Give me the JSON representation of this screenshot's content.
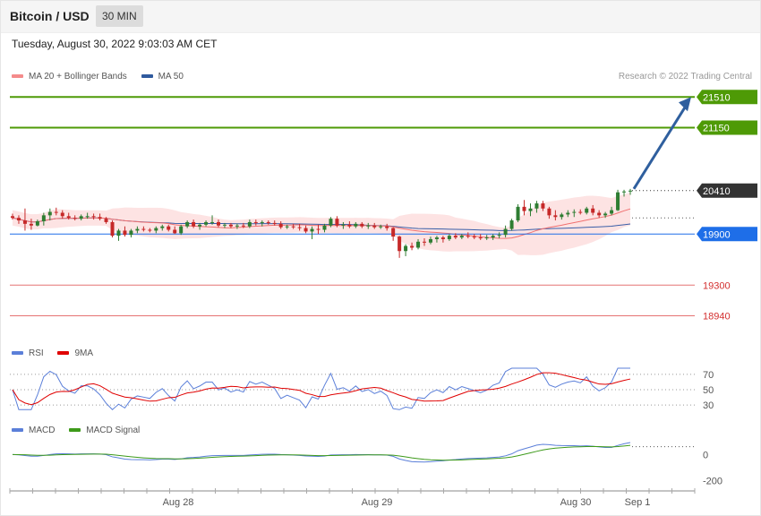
{
  "header": {
    "title": "Bitcoin / USD",
    "timeframe": "30 MIN"
  },
  "date_line": "Tuesday, August 30, 2022 9:03:03 AM CET",
  "legend_main": [
    {
      "label": "MA 20 + Bollinger Bands",
      "color": "#f48b8b"
    },
    {
      "label": "MA 50",
      "color": "#2f5a9e"
    }
  ],
  "credit": "Research © 2022 Trading Central",
  "legend_rsi": [
    {
      "label": "RSI",
      "color": "#5b7fd9"
    },
    {
      "label": "9MA",
      "color": "#e00000"
    }
  ],
  "legend_macd": [
    {
      "label": "MACD",
      "color": "#5b7fd9"
    },
    {
      "label": "MACD Signal",
      "color": "#3d9a1a"
    }
  ],
  "colors": {
    "up": "#2e7d32",
    "down": "#c62828",
    "target": "#4e9a06",
    "current": "#333333",
    "support": "#1e6ee8",
    "resistance_red": "#e57373",
    "bb_fill": "#fde3e3",
    "ma20": "#f07070",
    "ma50": "#3a5fa8",
    "arrow": "#2f5f9e"
  },
  "chart_data": {
    "type": "candlestick",
    "price_axis": {
      "min": 18800,
      "max": 21650
    },
    "levels": [
      {
        "value": 21510,
        "label": "21510",
        "style": "target"
      },
      {
        "value": 21150,
        "label": "21150",
        "style": "target"
      },
      {
        "value": 20410,
        "label": "20410",
        "style": "current"
      },
      {
        "value": 19900,
        "label": "19900",
        "style": "support"
      },
      {
        "value": 19300,
        "label": "19300",
        "style": "red"
      },
      {
        "value": 18940,
        "label": "18940",
        "style": "red"
      }
    ],
    "forecast_arrow": {
      "from": 20410,
      "to": 21510
    },
    "x_labels": [
      "Aug 28",
      "Aug 29",
      "Aug 30",
      "Sep 1"
    ],
    "ohlc": [
      [
        20110,
        20140,
        20070,
        20090
      ],
      [
        20090,
        20120,
        20020,
        20060
      ],
      [
        20060,
        20200,
        19940,
        20020
      ],
      [
        20020,
        20080,
        19950,
        20000
      ],
      [
        20000,
        20070,
        19990,
        20050
      ],
      [
        20050,
        20150,
        20000,
        20120
      ],
      [
        20120,
        20200,
        20060,
        20160
      ],
      [
        20160,
        20210,
        20120,
        20150
      ],
      [
        20150,
        20180,
        20080,
        20110
      ],
      [
        20110,
        20150,
        20070,
        20090
      ],
      [
        20090,
        20120,
        20060,
        20080
      ],
      [
        20080,
        20130,
        20060,
        20110
      ],
      [
        20110,
        20150,
        20080,
        20110
      ],
      [
        20110,
        20140,
        20070,
        20100
      ],
      [
        20100,
        20140,
        20060,
        20080
      ],
      [
        20080,
        20100,
        20020,
        20040
      ],
      [
        20040,
        20060,
        19860,
        19880
      ],
      [
        19880,
        19960,
        19820,
        19940
      ],
      [
        19940,
        19990,
        19870,
        19890
      ],
      [
        19890,
        19960,
        19860,
        19940
      ],
      [
        19940,
        19990,
        19910,
        19960
      ],
      [
        19960,
        19990,
        19930,
        19950
      ],
      [
        19950,
        19970,
        19920,
        19940
      ],
      [
        19940,
        19990,
        19910,
        19970
      ],
      [
        19970,
        20010,
        19940,
        19990
      ],
      [
        19990,
        20010,
        19930,
        19950
      ],
      [
        19950,
        19990,
        19900,
        19910
      ],
      [
        19910,
        20010,
        19890,
        19990
      ],
      [
        19990,
        20060,
        19970,
        20040
      ],
      [
        20040,
        20070,
        19970,
        19990
      ],
      [
        19990,
        20030,
        19950,
        20010
      ],
      [
        20010,
        20060,
        19990,
        20040
      ],
      [
        20040,
        20120,
        20010,
        20040
      ],
      [
        20040,
        20070,
        19980,
        20000
      ],
      [
        20000,
        20030,
        19970,
        20010
      ],
      [
        20010,
        20030,
        19970,
        19990
      ],
      [
        19990,
        20020,
        19960,
        20000
      ],
      [
        20000,
        20030,
        19970,
        19990
      ],
      [
        19990,
        20070,
        19970,
        20040
      ],
      [
        20040,
        20070,
        20000,
        20030
      ],
      [
        20030,
        20060,
        19990,
        20040
      ],
      [
        20040,
        20060,
        20010,
        20030
      ],
      [
        20030,
        20060,
        20000,
        20020
      ],
      [
        20020,
        20050,
        19960,
        19980
      ],
      [
        19980,
        20010,
        19960,
        19990
      ],
      [
        19990,
        20020,
        19960,
        19980
      ],
      [
        19980,
        20020,
        19940,
        19970
      ],
      [
        19970,
        20000,
        19910,
        19930
      ],
      [
        19930,
        19990,
        19840,
        19960
      ],
      [
        19960,
        20010,
        19900,
        19950
      ],
      [
        19950,
        20020,
        19920,
        20000
      ],
      [
        20000,
        20100,
        19980,
        20080
      ],
      [
        20080,
        20110,
        19980,
        20000
      ],
      [
        20000,
        20040,
        19960,
        20010
      ],
      [
        20010,
        20050,
        19970,
        19990
      ],
      [
        19990,
        20040,
        19970,
        20020
      ],
      [
        20020,
        20040,
        19970,
        19990
      ],
      [
        19990,
        20030,
        19960,
        20000
      ],
      [
        20000,
        20030,
        19960,
        19980
      ],
      [
        19980,
        20010,
        19960,
        19990
      ],
      [
        19990,
        20020,
        19940,
        19970
      ],
      [
        19970,
        19980,
        19820,
        19870
      ],
      [
        19870,
        19880,
        19620,
        19700
      ],
      [
        19700,
        19780,
        19640,
        19760
      ],
      [
        19760,
        19800,
        19710,
        19740
      ],
      [
        19740,
        19840,
        19720,
        19810
      ],
      [
        19810,
        19850,
        19760,
        19800
      ],
      [
        19800,
        19870,
        19780,
        19840
      ],
      [
        19840,
        19880,
        19800,
        19860
      ],
      [
        19860,
        19880,
        19800,
        19840
      ],
      [
        19840,
        19900,
        19820,
        19880
      ],
      [
        19880,
        19910,
        19840,
        19860
      ],
      [
        19860,
        19900,
        19840,
        19880
      ],
      [
        19880,
        19920,
        19850,
        19870
      ],
      [
        19870,
        19900,
        19840,
        19860
      ],
      [
        19860,
        19900,
        19830,
        19850
      ],
      [
        19850,
        19890,
        19830,
        19860
      ],
      [
        19860,
        19900,
        19830,
        19880
      ],
      [
        19880,
        19920,
        19850,
        19890
      ],
      [
        19890,
        20000,
        19860,
        19960
      ],
      [
        19960,
        20080,
        19940,
        20060
      ],
      [
        20060,
        20250,
        20040,
        20220
      ],
      [
        20220,
        20300,
        20120,
        20170
      ],
      [
        20170,
        20260,
        20110,
        20200
      ],
      [
        20200,
        20290,
        20150,
        20260
      ],
      [
        20260,
        20290,
        20170,
        20200
      ],
      [
        20200,
        20220,
        20080,
        20120
      ],
      [
        20120,
        20180,
        20060,
        20100
      ],
      [
        20100,
        20150,
        20070,
        20130
      ],
      [
        20130,
        20180,
        20100,
        20150
      ],
      [
        20150,
        20190,
        20100,
        20160
      ],
      [
        20160,
        20190,
        20130,
        20150
      ],
      [
        20150,
        20220,
        20130,
        20200
      ],
      [
        20200,
        20240,
        20120,
        20150
      ],
      [
        20150,
        20180,
        20090,
        20120
      ],
      [
        20120,
        20160,
        20090,
        20140
      ],
      [
        20140,
        20220,
        20120,
        20180
      ],
      [
        20180,
        20420,
        20170,
        20390
      ],
      [
        20390,
        20420,
        20340,
        20400
      ],
      [
        20400,
        20430,
        20360,
        20410
      ]
    ]
  },
  "rsi_data": {
    "levels": [
      {
        "value": 70,
        "label": "70"
      },
      {
        "value": 50,
        "label": "50"
      },
      {
        "value": 30,
        "label": "30"
      }
    ]
  },
  "macd_data": {
    "axis_labels": [
      "0",
      "-200"
    ]
  }
}
